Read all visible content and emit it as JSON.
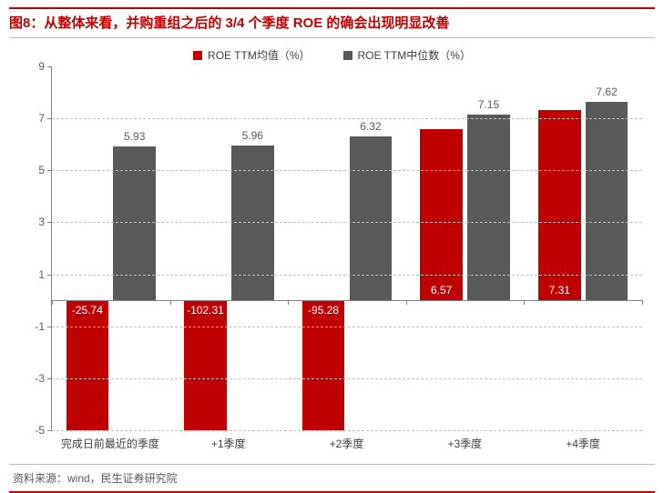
{
  "title": "图8：从整体来看，并购重组之后的 3/4 个季度 ROE 的确会出现明显改善",
  "source": "资料来源：wind，民生证券研究院",
  "chart": {
    "type": "bar",
    "categories": [
      "完成日前最近的季度",
      "+1季度",
      "+2季度",
      "+3季度",
      "+4季度"
    ],
    "series": [
      {
        "name": "ROE TTM均值（%）",
        "color": "#c00000",
        "values": [
          -25.74,
          -102.31,
          -95.28,
          6.57,
          7.31
        ]
      },
      {
        "name": "ROE TTM中位数（%）",
        "color": "#595959",
        "values": [
          5.93,
          5.96,
          6.32,
          7.15,
          7.62
        ]
      }
    ],
    "ylim": [
      -5,
      9
    ],
    "ytick_step": 2,
    "background_color": "#ffffff",
    "grid_color": "#bfbfbf",
    "axis_color": "#808080",
    "title_color": "#c00000",
    "title_fontsize": 15,
    "label_fontsize": 12,
    "bar_group_width": 0.72,
    "data_label_inside_color": "#ffffff",
    "data_label_outside_color": "#595959",
    "accent_border_color": "#c00000"
  }
}
